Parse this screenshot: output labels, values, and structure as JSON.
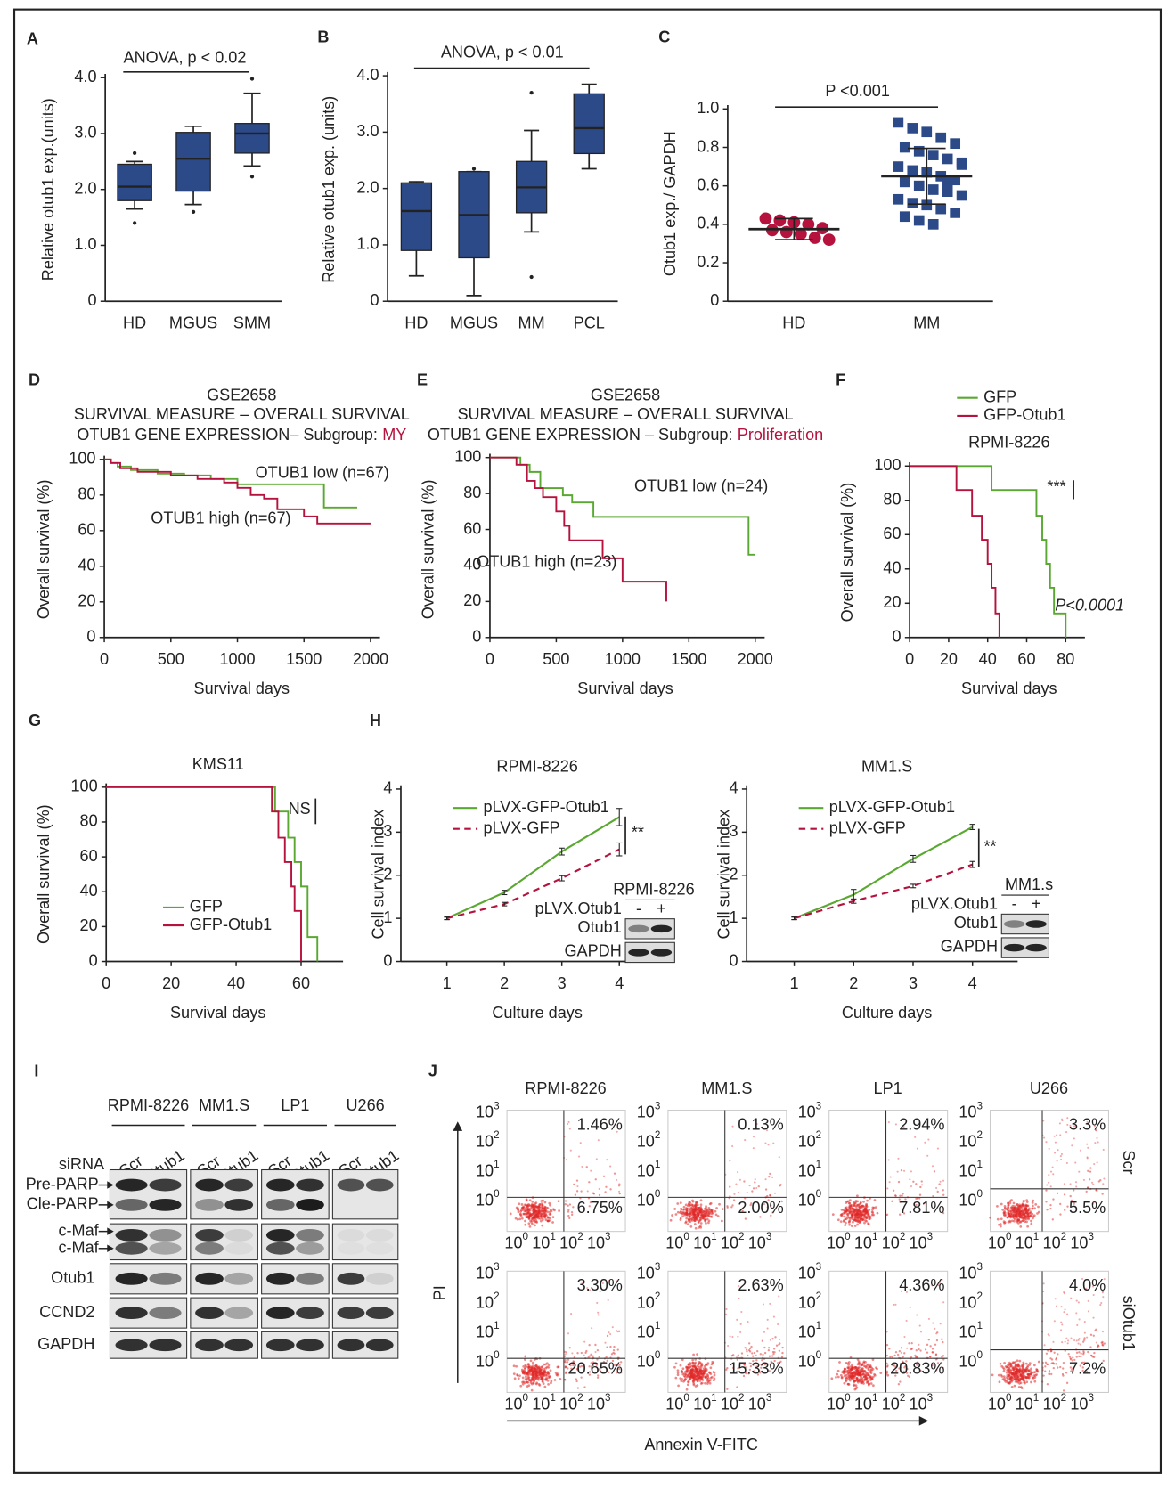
{
  "chart_data": [
    {
      "type": "box",
      "label": "A",
      "categories": [
        "HD",
        "MGUS",
        "SMM"
      ],
      "ylabel": "Relative otub1 exp.(units)",
      "annotations": [
        "ANOVA, p < 0.02"
      ],
      "color": "#2c4a87",
      "whislo": [
        1.65,
        1.73,
        2.42
      ],
      "q1": [
        1.8,
        1.97,
        2.65
      ],
      "median": [
        2.05,
        2.55,
        3.0
      ],
      "q3": [
        2.45,
        3.02,
        3.18
      ],
      "whishi": [
        2.5,
        3.13,
        3.72
      ],
      "fliers": [
        [
          1.4,
          2.65
        ],
        [
          1.6
        ],
        [
          2.23,
          3.98
        ]
      ],
      "ylim": [
        0,
        4.0
      ],
      "yticks": [
        0,
        {
          "value": 1,
          "label": "1.0"
        },
        {
          "value": 2,
          "label": "2.0"
        },
        {
          "value": 3,
          "label": "3.0"
        },
        {
          "value": 4,
          "label": "4.0"
        }
      ]
    },
    {
      "type": "box",
      "label": "B",
      "categories": [
        "HD",
        "MGUS",
        "MM",
        "PCL"
      ],
      "ylabel": "Relative otub1 exp. (units)",
      "annotations": [
        "ANOVA, p < 0.01"
      ],
      "color": "#2c4a87",
      "whislo": [
        0.45,
        0.1,
        1.23,
        2.35
      ],
      "q1": [
        0.9,
        0.77,
        1.57,
        2.62
      ],
      "median": [
        1.6,
        1.53,
        2.02,
        3.07
      ],
      "q3": [
        2.1,
        2.3,
        2.48,
        3.68
      ],
      "whishi": [
        2.12,
        2.3,
        3.03,
        3.85
      ],
      "fliers": [
        [],
        [
          2.35
        ],
        [
          0.43,
          3.7
        ],
        []
      ],
      "ylim": [
        0,
        4.0
      ],
      "yticks": [
        0,
        {
          "value": 1,
          "label": "1.0"
        },
        {
          "value": 2,
          "label": "2.0"
        },
        {
          "value": 3,
          "label": "3.0"
        },
        {
          "value": 4,
          "label": "4.0"
        }
      ]
    },
    {
      "type": "strip",
      "label": "C",
      "categories": [
        "HD",
        "MM"
      ],
      "ylabel": "Otub1 exp./ GAPDH",
      "annotations": [
        "P <0.001"
      ],
      "colors": [
        "#b5123d",
        "#2c4a87"
      ],
      "markers": [
        "circle",
        "square"
      ],
      "values": [
        [
          0.43,
          0.42,
          0.41,
          0.4,
          0.38,
          0.37,
          0.36,
          0.35,
          0.33,
          0.32
        ],
        [
          0.93,
          0.9,
          0.88,
          0.85,
          0.82,
          0.8,
          0.78,
          0.76,
          0.74,
          0.72,
          0.7,
          0.68,
          0.67,
          0.65,
          0.63,
          0.62,
          0.6,
          0.58,
          0.57,
          0.55,
          0.53,
          0.51,
          0.5,
          0.48,
          0.46,
          0.44,
          0.42,
          0.4,
          0.62,
          0.71
        ]
      ],
      "means": [
        0.375,
        0.65
      ],
      "sds": [
        0.055,
        0.145
      ],
      "ylim": [
        0,
        1.0
      ],
      "yticks": [
        0,
        0.2,
        0.4,
        0.6,
        0.8,
        {
          "value": 1,
          "label": "1.0"
        }
      ]
    },
    {
      "type": "step",
      "label": "D",
      "title_lines": [
        "GSE2658",
        "SURVIVAL MEASURE – OVERALL SURVIVAL",
        "OTUB1 GENE EXPRESSION– Subgroup:"
      ],
      "subgroup": "MY",
      "subgroup_color": "#b5123d",
      "xlabel": "Survival days",
      "ylabel": "Overall survival (%)",
      "series": [
        {
          "name": "OTUB1 low (n=67)",
          "color": "#5aa832",
          "x": [
            0,
            50,
            100,
            200,
            400,
            600,
            800,
            1000,
            1650,
            1900
          ],
          "values": [
            100,
            98,
            96,
            94,
            92,
            91,
            89,
            86,
            73,
            73
          ]
        },
        {
          "name": "OTUB1 high (n=67)",
          "color": "#b5123d",
          "x": [
            0,
            50,
            120,
            250,
            500,
            700,
            900,
            1000,
            1100,
            1200,
            1300,
            1500,
            1600,
            2000
          ],
          "values": [
            100,
            98,
            95,
            93,
            91,
            89,
            87,
            84,
            80,
            78,
            72,
            68,
            64,
            64
          ]
        }
      ],
      "xlim": [
        0,
        2000
      ],
      "xticks": [
        0,
        500,
        1000,
        1500,
        2000
      ],
      "ylim": [
        0,
        100
      ],
      "yticks": [
        0,
        20,
        40,
        60,
        80,
        100
      ]
    },
    {
      "type": "step",
      "label": "E",
      "title_lines": [
        "GSE2658",
        "SURVIVAL MEASURE – OVERALL SURVIVAL",
        "OTUB1 GENE EXPRESSION – Subgroup:"
      ],
      "subgroup": "Proliferation",
      "subgroup_color": "#b5123d",
      "xlabel": "Survival days",
      "ylabel": "Overall survival (%)",
      "series": [
        {
          "name": "OTUB1 low (n=24)",
          "color": "#5aa832",
          "x": [
            0,
            230,
            300,
            380,
            550,
            620,
            780,
            1950,
            2000
          ],
          "values": [
            100,
            96,
            92,
            83,
            79,
            75,
            67,
            46,
            46
          ]
        },
        {
          "name": "OTUB1 high (n=23)",
          "color": "#b5123d",
          "x": [
            0,
            200,
            280,
            340,
            400,
            500,
            560,
            600,
            850,
            1000,
            1330
          ],
          "values": [
            100,
            96,
            87,
            83,
            78,
            70,
            62,
            54,
            44,
            31,
            20
          ]
        }
      ],
      "xlim": [
        0,
        2000
      ],
      "xticks": [
        0,
        500,
        1000,
        1500,
        2000
      ],
      "ylim": [
        0,
        100
      ],
      "yticks": [
        0,
        20,
        40,
        60,
        80,
        100
      ]
    },
    {
      "type": "step",
      "label": "F",
      "title": "RPMI-8226",
      "xlabel": "Survival days",
      "ylabel": "Overall survival (%)",
      "annotations": [
        "***",
        "P<0.0001"
      ],
      "series": [
        {
          "name": "GFP",
          "color": "#5aa832",
          "x": [
            0,
            42,
            65,
            68,
            70,
            72,
            74,
            80
          ],
          "values": [
            100,
            86,
            71,
            57,
            43,
            29,
            14,
            0
          ]
        },
        {
          "name": "GFP-Otub1",
          "color": "#b5123d",
          "x": [
            0,
            24,
            32,
            37,
            40,
            42,
            44,
            46
          ],
          "values": [
            100,
            86,
            71,
            57,
            43,
            29,
            14,
            0
          ]
        }
      ],
      "xlim": [
        0,
        85
      ],
      "xticks": [
        0,
        20,
        40,
        60,
        80
      ],
      "ylim": [
        0,
        100
      ],
      "yticks": [
        0,
        20,
        40,
        60,
        80,
        100
      ]
    },
    {
      "type": "step",
      "label": "G",
      "title": "KMS11",
      "xlabel": "Survival days",
      "ylabel": "Overall survival (%)",
      "annotations": [
        "NS"
      ],
      "series": [
        {
          "name": "GFP",
          "color": "#5aa832",
          "x": [
            0,
            52,
            56,
            58,
            60,
            62,
            65
          ],
          "values": [
            100,
            86,
            71,
            57,
            43,
            14,
            0
          ]
        },
        {
          "name": "GFP-Otub1",
          "color": "#b5123d",
          "x": [
            0,
            51,
            53,
            55,
            57,
            58,
            60
          ],
          "values": [
            100,
            86,
            71,
            57,
            43,
            29,
            0
          ]
        }
      ],
      "xlim": [
        0,
        70
      ],
      "xticks": [
        0,
        20,
        40,
        60
      ],
      "ylim": [
        0,
        100
      ],
      "yticks": [
        0,
        20,
        40,
        60,
        80,
        100
      ]
    },
    {
      "type": "line",
      "label": "H",
      "title": "RPMI-8226",
      "xlabel": "Culture days",
      "ylabel": "Cell survival index",
      "annotations": [
        "**"
      ],
      "x": [
        1,
        2,
        3,
        4
      ],
      "series": [
        {
          "name": "pLVX-GFP-Otub1",
          "color": "#5aa832",
          "dashed": false,
          "values": [
            1.0,
            1.6,
            2.55,
            3.35
          ],
          "errors": [
            0.03,
            0.05,
            0.08,
            0.2
          ]
        },
        {
          "name": "pLVX-GFP",
          "color": "#b5123d",
          "dashed": true,
          "values": [
            1.0,
            1.33,
            1.93,
            2.6
          ],
          "errors": [
            0.03,
            0.04,
            0.06,
            0.15
          ]
        }
      ],
      "inset": {
        "title": "RPMI-8226",
        "row_label": "pLVX.Otub1",
        "lanes": [
          "-",
          "+"
        ],
        "rows": [
          "Otub1",
          "GAPDH"
        ]
      },
      "xlim": [
        0.2,
        4.6
      ],
      "xticks": [
        1,
        2,
        3,
        4
      ],
      "ylim": [
        0,
        4
      ],
      "yticks": [
        0,
        1,
        2,
        3,
        4
      ]
    },
    {
      "type": "line",
      "title": "MM1.S",
      "xlabel": "Culture days",
      "ylabel": "Cell survival index",
      "annotations": [
        "**"
      ],
      "x": [
        1,
        2,
        3,
        4
      ],
      "series": [
        {
          "name": "pLVX-GFP-Otub1",
          "color": "#5aa832",
          "dashed": false,
          "values": [
            1.0,
            1.55,
            2.38,
            3.12
          ],
          "errors": [
            0.03,
            0.12,
            0.08,
            0.06
          ]
        },
        {
          "name": "pLVX-GFP",
          "color": "#b5123d",
          "dashed": true,
          "values": [
            1.0,
            1.4,
            1.75,
            2.25
          ],
          "errors": [
            0.03,
            0.05,
            0.04,
            0.07
          ]
        }
      ],
      "inset": {
        "title": "MM1.s",
        "row_label": "pLVX.Otub1",
        "lanes": [
          "-",
          "+"
        ],
        "rows": [
          "Otub1",
          "GAPDH"
        ]
      },
      "xlim": [
        0.2,
        4.6
      ],
      "xticks": [
        1,
        2,
        3,
        4
      ],
      "ylim": [
        0,
        4
      ],
      "yticks": [
        0,
        1,
        2,
        3,
        4
      ]
    }
  ],
  "blot": {
    "label": "I",
    "cell_lines": [
      "RPMI-8226",
      "MM1.S",
      "LP1",
      "U266"
    ],
    "siRNA": "siRNA",
    "lanes": [
      "Scr",
      "Otub1"
    ],
    "rows": [
      "Pre-PARP",
      "Cle-PARP",
      "c-Maf",
      "c-Maf",
      "Otub1",
      "CCND2",
      "GAPDH"
    ]
  },
  "flow": {
    "label": "J",
    "columns": [
      "RPMI-8226",
      "MM1.S",
      "LP1",
      "U266"
    ],
    "rows": [
      "Scr",
      "siOtub1"
    ],
    "ticks": [
      {
        "base": "10",
        "exp": "0"
      },
      {
        "base": "10",
        "exp": "1"
      },
      {
        "base": "10",
        "exp": "2"
      },
      {
        "base": "10",
        "exp": "3"
      }
    ],
    "upper_right": [
      [
        "1.46%",
        "0.13%",
        "2.94%",
        "3.3%"
      ],
      [
        "3.30%",
        "2.63%",
        "4.36%",
        "4.0%"
      ]
    ],
    "lower_right": [
      [
        "6.75%",
        "2.00%",
        "7.81%",
        "5.5%"
      ],
      [
        "20.65%",
        "15.33%",
        "20.83%",
        "7.2%"
      ]
    ],
    "ylabel": "PI",
    "xlabel": "Annexin V-FITC"
  }
}
